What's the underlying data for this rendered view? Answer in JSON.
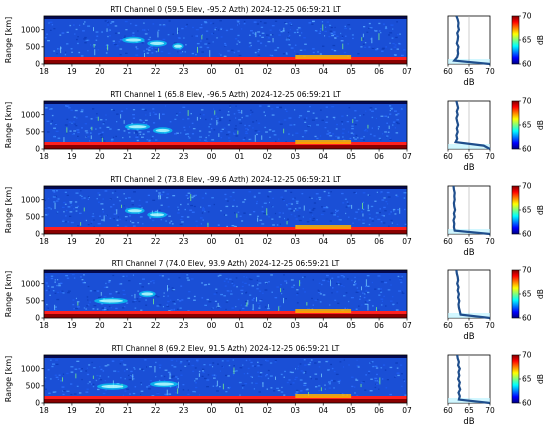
{
  "figure": {
    "ylabel": "Range [km]",
    "profile_xlabel": "dB",
    "colorbar_label": "dB"
  },
  "colormap": [
    "#00007f",
    "#0000ff",
    "#007fff",
    "#00ffff",
    "#7fff7f",
    "#ffff00",
    "#ff7f00",
    "#ff0000",
    "#7f0000"
  ],
  "chart_data": [
    {
      "type": "heatmap",
      "title": "RTI  Channel 0 (59.5 Elev,  -95.2 Azth) 2024-12-25 06:59:21 LT",
      "xlabel": "",
      "ylabel": "Range [km]",
      "x_ticks": [
        "18",
        "19",
        "20",
        "21",
        "22",
        "23",
        "00",
        "01",
        "02",
        "03",
        "04",
        "05",
        "06",
        "07"
      ],
      "y_ticks": [
        0,
        500,
        1000
      ],
      "ylim": [
        0,
        1400
      ],
      "profile": {
        "xlabel": "dB",
        "x_ticks": [
          60,
          65,
          70
        ],
        "xlim": [
          60,
          70
        ],
        "ranges": [
          0,
          100,
          200,
          300,
          400,
          500,
          600,
          700,
          800,
          900,
          1000,
          1100,
          1200,
          1300,
          1400
        ],
        "values": [
          70,
          61.5,
          62.2,
          62.4,
          62.3,
          62.5,
          62.1,
          62.3,
          62.4,
          62.2,
          62.6,
          62.4,
          62.5,
          62.3,
          62.0
        ]
      },
      "colorbar": {
        "ticks": [
          60,
          65,
          70
        ],
        "range": [
          60,
          70
        ]
      },
      "echoes": [
        {
          "start_hour": 20.8,
          "end_hour": 21.6,
          "range_km": 700
        },
        {
          "start_hour": 21.7,
          "end_hour": 22.4,
          "range_km": 600
        },
        {
          "start_hour": 22.6,
          "end_hour": 23.0,
          "range_km": 520
        }
      ]
    },
    {
      "type": "heatmap",
      "title": "RTI  Channel 1 (65.8 Elev,  -96.5 Azth) 2024-12-25 06:59:21 LT",
      "xlabel": "",
      "ylabel": "Range [km]",
      "x_ticks": [
        "18",
        "19",
        "20",
        "21",
        "22",
        "23",
        "00",
        "01",
        "02",
        "03",
        "04",
        "05",
        "06",
        "07"
      ],
      "y_ticks": [
        0,
        500,
        1000
      ],
      "ylim": [
        0,
        1400
      ],
      "profile": {
        "xlabel": "dB",
        "x_ticks": [
          60,
          65,
          70
        ],
        "xlim": [
          60,
          70
        ],
        "ranges": [
          0,
          100,
          200,
          300,
          400,
          500,
          600,
          700,
          800,
          900,
          1000,
          1100,
          1200,
          1300,
          1400
        ],
        "values": [
          70,
          68.5,
          61.8,
          62.2,
          62.0,
          62.3,
          62.1,
          62.4,
          62.2,
          62.0,
          62.3,
          62.1,
          62.4,
          62.2,
          62.0
        ]
      },
      "colorbar": {
        "ticks": [
          60,
          65,
          70
        ],
        "range": [
          60,
          70
        ]
      },
      "echoes": [
        {
          "start_hour": 20.9,
          "end_hour": 21.8,
          "range_km": 650
        },
        {
          "start_hour": 21.9,
          "end_hour": 22.6,
          "range_km": 540
        }
      ]
    },
    {
      "type": "heatmap",
      "title": "RTI  Channel 2 (73.8 Elev,  -99.6 Azth) 2024-12-25 06:59:21 LT",
      "xlabel": "",
      "ylabel": "Range [km]",
      "x_ticks": [
        "18",
        "19",
        "20",
        "21",
        "22",
        "23",
        "00",
        "01",
        "02",
        "03",
        "04",
        "05",
        "06",
        "07"
      ],
      "y_ticks": [
        0,
        500,
        1000
      ],
      "ylim": [
        0,
        1400
      ],
      "profile": {
        "xlabel": "dB",
        "x_ticks": [
          60,
          65,
          70
        ],
        "xlim": [
          60,
          70
        ],
        "ranges": [
          0,
          100,
          200,
          300,
          400,
          500,
          600,
          700,
          800,
          900,
          1000,
          1100,
          1200,
          1300,
          1400
        ],
        "values": [
          70,
          61.6,
          61.4,
          61.5,
          61.3,
          61.6,
          61.4,
          61.7,
          61.5,
          61.4,
          61.6,
          61.5,
          61.6,
          61.4,
          61.3
        ]
      },
      "colorbar": {
        "ticks": [
          60,
          65,
          70
        ],
        "range": [
          60,
          70
        ]
      },
      "echoes": [
        {
          "start_hour": 20.9,
          "end_hour": 21.6,
          "range_km": 680
        },
        {
          "start_hour": 21.7,
          "end_hour": 22.4,
          "range_km": 560
        }
      ]
    },
    {
      "type": "heatmap",
      "title": "RTI  Channel 7 (74.0 Elev,  93.9 Azth) 2024-12-25 06:59:21 LT",
      "xlabel": "",
      "ylabel": "Range [km]",
      "x_ticks": [
        "18",
        "19",
        "20",
        "21",
        "22",
        "23",
        "00",
        "01",
        "02",
        "03",
        "04",
        "05",
        "06",
        "07"
      ],
      "y_ticks": [
        0,
        500,
        1000
      ],
      "ylim": [
        0,
        1400
      ],
      "profile": {
        "xlabel": "dB",
        "x_ticks": [
          60,
          65,
          70
        ],
        "xlim": [
          60,
          70
        ],
        "ranges": [
          0,
          100,
          200,
          300,
          400,
          500,
          600,
          700,
          800,
          900,
          1000,
          1100,
          1200,
          1300,
          1400
        ],
        "values": [
          70,
          63.0,
          62.8,
          62.6,
          62.5,
          62.7,
          62.4,
          62.6,
          62.3,
          62.5,
          62.2,
          62.4,
          62.3,
          62.1,
          62.0
        ]
      },
      "colorbar": {
        "ticks": [
          60,
          65,
          70
        ],
        "range": [
          60,
          70
        ]
      },
      "echoes": [
        {
          "start_hour": 19.8,
          "end_hour": 21.0,
          "range_km": 500
        },
        {
          "start_hour": 21.4,
          "end_hour": 22.0,
          "range_km": 700
        }
      ]
    },
    {
      "type": "heatmap",
      "title": "RTI  Channel 8 (69.2 Elev,  91.5 Azth) 2024-12-25 06:59:21 LT",
      "xlabel": "",
      "ylabel": "Range [km]",
      "x_ticks": [
        "18",
        "19",
        "20",
        "21",
        "22",
        "23",
        "00",
        "01",
        "02",
        "03",
        "04",
        "05",
        "06",
        "07"
      ],
      "y_ticks": [
        0,
        500,
        1000
      ],
      "ylim": [
        0,
        1400
      ],
      "profile": {
        "xlabel": "dB",
        "x_ticks": [
          60,
          65,
          70
        ],
        "xlim": [
          60,
          70
        ],
        "ranges": [
          0,
          100,
          200,
          300,
          400,
          500,
          600,
          700,
          800,
          900,
          1000,
          1100,
          1200,
          1300,
          1400
        ],
        "values": [
          70,
          62.6,
          62.8,
          62.5,
          62.9,
          62.6,
          62.8,
          62.4,
          62.7,
          62.5,
          62.8,
          62.4,
          62.6,
          62.3,
          62.2
        ]
      },
      "colorbar": {
        "ticks": [
          60,
          65,
          70
        ],
        "range": [
          60,
          70
        ]
      },
      "echoes": [
        {
          "start_hour": 19.9,
          "end_hour": 21.0,
          "range_km": 480
        },
        {
          "start_hour": 21.8,
          "end_hour": 22.8,
          "range_km": 550
        }
      ]
    }
  ]
}
